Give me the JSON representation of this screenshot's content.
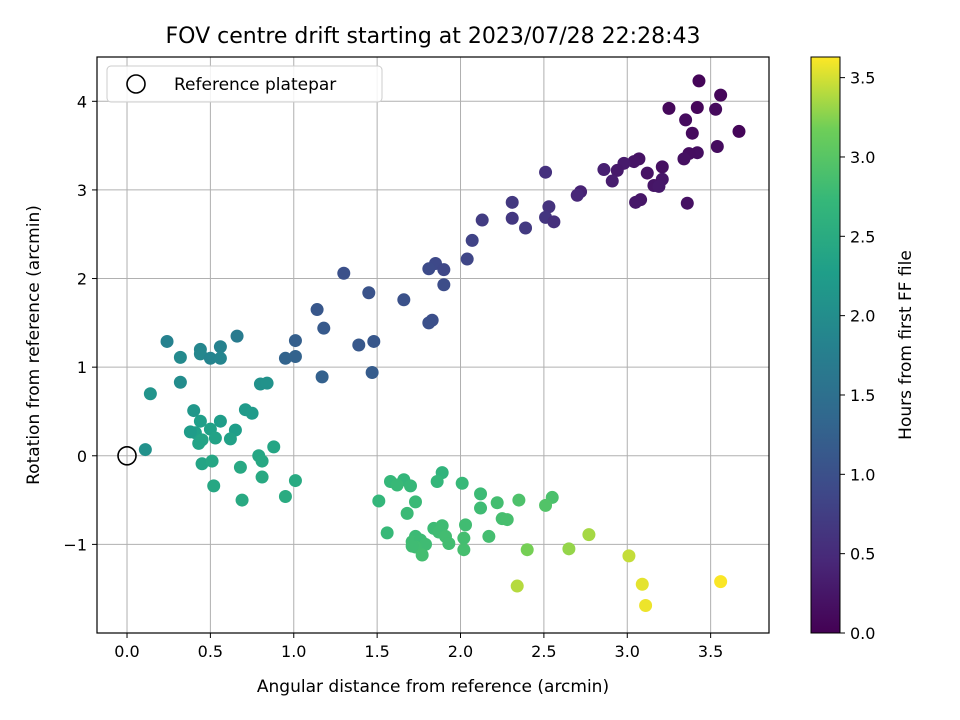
{
  "chart_data": {
    "type": "scatter",
    "title": "FOV centre drift starting at 2023/07/28 22:28:43",
    "xlabel": "Angular distance from reference (arcmin)",
    "ylabel": "Rotation from reference (arcmin)",
    "xlim": [
      -0.18,
      3.85
    ],
    "ylim": [
      -2.0,
      4.5
    ],
    "xticks": [
      0.0,
      0.5,
      1.0,
      1.5,
      2.0,
      2.5,
      3.0,
      3.5
    ],
    "xtick_labels": [
      "0.0",
      "0.5",
      "1.0",
      "1.5",
      "2.0",
      "2.5",
      "3.0",
      "3.5"
    ],
    "yticks": [
      -1,
      0,
      1,
      2,
      3,
      4
    ],
    "ytick_labels": [
      "−1",
      "0",
      "1",
      "2",
      "3",
      "4"
    ],
    "grid": true,
    "legend": {
      "position": "upper-left",
      "entries": [
        "Reference platepar"
      ]
    },
    "reference_point": {
      "x": 0.0,
      "y": 0.0,
      "marker": "open-circle"
    },
    "colorbar": {
      "label": "Hours from first FF file",
      "range": [
        0.0,
        3.63
      ],
      "ticks": [
        0.0,
        0.5,
        1.0,
        1.5,
        2.0,
        2.5,
        3.0,
        3.5
      ],
      "tick_labels": [
        "0.0",
        "0.5",
        "1.0",
        "1.5",
        "2.0",
        "2.5",
        "3.0",
        "3.5"
      ],
      "colormap": "viridis"
    },
    "points": [
      {
        "x": 3.43,
        "y": 4.23,
        "c": 0.05
      },
      {
        "x": 3.56,
        "y": 4.07,
        "c": 0.07
      },
      {
        "x": 3.25,
        "y": 3.92,
        "c": 0.08
      },
      {
        "x": 3.42,
        "y": 3.93,
        "c": 0.06
      },
      {
        "x": 3.53,
        "y": 3.91,
        "c": 0.1
      },
      {
        "x": 3.35,
        "y": 3.79,
        "c": 0.12
      },
      {
        "x": 3.67,
        "y": 3.66,
        "c": 0.05
      },
      {
        "x": 3.39,
        "y": 3.64,
        "c": 0.11
      },
      {
        "x": 3.54,
        "y": 3.49,
        "c": 0.13
      },
      {
        "x": 3.42,
        "y": 3.42,
        "c": 0.15
      },
      {
        "x": 3.37,
        "y": 3.41,
        "c": 0.14
      },
      {
        "x": 3.34,
        "y": 3.35,
        "c": 0.17
      },
      {
        "x": 3.07,
        "y": 3.35,
        "c": 0.2
      },
      {
        "x": 3.04,
        "y": 3.32,
        "c": 0.22
      },
      {
        "x": 2.98,
        "y": 3.3,
        "c": 0.3
      },
      {
        "x": 3.21,
        "y": 3.26,
        "c": 0.18
      },
      {
        "x": 2.86,
        "y": 3.23,
        "c": 0.36
      },
      {
        "x": 2.94,
        "y": 3.22,
        "c": 0.28
      },
      {
        "x": 3.12,
        "y": 3.19,
        "c": 0.21
      },
      {
        "x": 3.21,
        "y": 3.12,
        "c": 0.25
      },
      {
        "x": 2.91,
        "y": 3.1,
        "c": 0.33
      },
      {
        "x": 3.16,
        "y": 3.05,
        "c": 0.23
      },
      {
        "x": 3.19,
        "y": 3.04,
        "c": 0.27
      },
      {
        "x": 2.72,
        "y": 2.98,
        "c": 0.4
      },
      {
        "x": 2.7,
        "y": 2.94,
        "c": 0.45
      },
      {
        "x": 3.08,
        "y": 2.89,
        "c": 0.24
      },
      {
        "x": 3.05,
        "y": 2.86,
        "c": 0.26
      },
      {
        "x": 3.36,
        "y": 2.85,
        "c": 0.19
      },
      {
        "x": 2.51,
        "y": 3.2,
        "c": 0.58
      },
      {
        "x": 2.31,
        "y": 2.86,
        "c": 0.68
      },
      {
        "x": 2.53,
        "y": 2.81,
        "c": 0.6
      },
      {
        "x": 2.51,
        "y": 2.69,
        "c": 0.63
      },
      {
        "x": 2.31,
        "y": 2.68,
        "c": 0.66
      },
      {
        "x": 2.13,
        "y": 2.66,
        "c": 0.72
      },
      {
        "x": 2.56,
        "y": 2.64,
        "c": 0.56
      },
      {
        "x": 2.39,
        "y": 2.57,
        "c": 0.7
      },
      {
        "x": 2.07,
        "y": 2.43,
        "c": 0.82
      },
      {
        "x": 2.04,
        "y": 2.22,
        "c": 0.85
      },
      {
        "x": 1.85,
        "y": 2.17,
        "c": 0.9
      },
      {
        "x": 1.81,
        "y": 2.11,
        "c": 0.93
      },
      {
        "x": 1.9,
        "y": 2.1,
        "c": 0.88
      },
      {
        "x": 1.3,
        "y": 2.06,
        "c": 1.0
      },
      {
        "x": 1.9,
        "y": 1.93,
        "c": 0.95
      },
      {
        "x": 1.45,
        "y": 1.84,
        "c": 1.04
      },
      {
        "x": 1.66,
        "y": 1.76,
        "c": 1.02
      },
      {
        "x": 1.14,
        "y": 1.65,
        "c": 1.1
      },
      {
        "x": 1.83,
        "y": 1.53,
        "c": 0.98
      },
      {
        "x": 1.81,
        "y": 1.5,
        "c": 1.0
      },
      {
        "x": 1.18,
        "y": 1.44,
        "c": 1.15
      },
      {
        "x": 1.01,
        "y": 1.3,
        "c": 1.22
      },
      {
        "x": 1.48,
        "y": 1.29,
        "c": 1.1
      },
      {
        "x": 1.39,
        "y": 1.25,
        "c": 1.12
      },
      {
        "x": 1.01,
        "y": 1.12,
        "c": 1.28
      },
      {
        "x": 0.95,
        "y": 1.1,
        "c": 1.3
      },
      {
        "x": 1.47,
        "y": 0.94,
        "c": 1.18
      },
      {
        "x": 1.17,
        "y": 0.89,
        "c": 1.25
      },
      {
        "x": 0.24,
        "y": 1.29,
        "c": 1.8
      },
      {
        "x": 0.66,
        "y": 1.35,
        "c": 1.7
      },
      {
        "x": 0.44,
        "y": 1.2,
        "c": 1.88
      },
      {
        "x": 0.56,
        "y": 1.23,
        "c": 1.82
      },
      {
        "x": 0.44,
        "y": 1.15,
        "c": 1.9
      },
      {
        "x": 0.32,
        "y": 1.11,
        "c": 1.95
      },
      {
        "x": 0.5,
        "y": 1.1,
        "c": 1.85
      },
      {
        "x": 0.56,
        "y": 1.1,
        "c": 1.86
      },
      {
        "x": 0.32,
        "y": 0.83,
        "c": 1.98
      },
      {
        "x": 0.8,
        "y": 0.81,
        "c": 2.05
      },
      {
        "x": 0.84,
        "y": 0.82,
        "c": 2.07
      },
      {
        "x": 0.14,
        "y": 0.7,
        "c": 2.1
      },
      {
        "x": 0.4,
        "y": 0.51,
        "c": 2.15
      },
      {
        "x": 0.71,
        "y": 0.52,
        "c": 2.2
      },
      {
        "x": 0.75,
        "y": 0.48,
        "c": 2.22
      },
      {
        "x": 0.56,
        "y": 0.39,
        "c": 2.25
      },
      {
        "x": 0.44,
        "y": 0.39,
        "c": 2.28
      },
      {
        "x": 0.41,
        "y": 0.26,
        "c": 2.3
      },
      {
        "x": 0.65,
        "y": 0.29,
        "c": 2.27
      },
      {
        "x": 0.5,
        "y": 0.3,
        "c": 2.32
      },
      {
        "x": 0.38,
        "y": 0.27,
        "c": 2.24
      },
      {
        "x": 0.53,
        "y": 0.2,
        "c": 2.35
      },
      {
        "x": 0.62,
        "y": 0.19,
        "c": 2.33
      },
      {
        "x": 0.45,
        "y": 0.18,
        "c": 2.37
      },
      {
        "x": 0.43,
        "y": 0.14,
        "c": 2.36
      },
      {
        "x": 0.88,
        "y": 0.1,
        "c": 2.4
      },
      {
        "x": 0.11,
        "y": 0.07,
        "c": 2.05
      },
      {
        "x": 0.79,
        "y": 0.0,
        "c": 2.42
      },
      {
        "x": 0.81,
        "y": -0.06,
        "c": 2.44
      },
      {
        "x": 0.45,
        "y": -0.09,
        "c": 2.38
      },
      {
        "x": 0.51,
        "y": -0.06,
        "c": 2.41
      },
      {
        "x": 0.68,
        "y": -0.13,
        "c": 2.45
      },
      {
        "x": 0.81,
        "y": -0.24,
        "c": 2.46
      },
      {
        "x": 1.01,
        "y": -0.28,
        "c": 2.48
      },
      {
        "x": 0.52,
        "y": -0.34,
        "c": 2.43
      },
      {
        "x": 0.95,
        "y": -0.46,
        "c": 2.5
      },
      {
        "x": 0.69,
        "y": -0.5,
        "c": 2.47
      },
      {
        "x": 1.89,
        "y": -0.19,
        "c": 2.65
      },
      {
        "x": 1.86,
        "y": -0.29,
        "c": 2.7
      },
      {
        "x": 1.58,
        "y": -0.29,
        "c": 2.72
      },
      {
        "x": 1.66,
        "y": -0.27,
        "c": 2.68
      },
      {
        "x": 2.01,
        "y": -0.31,
        "c": 2.74
      },
      {
        "x": 1.62,
        "y": -0.33,
        "c": 2.75
      },
      {
        "x": 1.7,
        "y": -0.34,
        "c": 2.73
      },
      {
        "x": 2.12,
        "y": -0.43,
        "c": 2.78
      },
      {
        "x": 2.55,
        "y": -0.47,
        "c": 2.9
      },
      {
        "x": 1.51,
        "y": -0.51,
        "c": 2.7
      },
      {
        "x": 1.73,
        "y": -0.52,
        "c": 2.76
      },
      {
        "x": 2.22,
        "y": -0.53,
        "c": 2.84
      },
      {
        "x": 2.35,
        "y": -0.5,
        "c": 2.92
      },
      {
        "x": 2.51,
        "y": -0.56,
        "c": 2.95
      },
      {
        "x": 2.12,
        "y": -0.59,
        "c": 2.8
      },
      {
        "x": 1.68,
        "y": -0.65,
        "c": 2.77
      },
      {
        "x": 2.25,
        "y": -0.71,
        "c": 2.86
      },
      {
        "x": 2.28,
        "y": -0.72,
        "c": 2.87
      },
      {
        "x": 2.03,
        "y": -0.78,
        "c": 2.82
      },
      {
        "x": 1.84,
        "y": -0.82,
        "c": 2.79
      },
      {
        "x": 1.89,
        "y": -0.79,
        "c": 2.8
      },
      {
        "x": 1.56,
        "y": -0.87,
        "c": 2.74
      },
      {
        "x": 1.87,
        "y": -0.86,
        "c": 2.81
      },
      {
        "x": 1.91,
        "y": -0.91,
        "c": 2.83
      },
      {
        "x": 2.17,
        "y": -0.91,
        "c": 2.85
      },
      {
        "x": 2.02,
        "y": -0.93,
        "c": 2.84
      },
      {
        "x": 1.73,
        "y": -0.91,
        "c": 2.78
      },
      {
        "x": 1.71,
        "y": -0.97,
        "c": 2.8
      },
      {
        "x": 1.76,
        "y": -0.95,
        "c": 2.79
      },
      {
        "x": 1.79,
        "y": -1.0,
        "c": 2.81
      },
      {
        "x": 1.73,
        "y": -1.03,
        "c": 2.82
      },
      {
        "x": 1.93,
        "y": -0.99,
        "c": 2.83
      },
      {
        "x": 1.71,
        "y": -1.02,
        "c": 2.81
      },
      {
        "x": 2.02,
        "y": -1.06,
        "c": 2.86
      },
      {
        "x": 1.77,
        "y": -1.12,
        "c": 2.84
      },
      {
        "x": 2.77,
        "y": -0.89,
        "c": 3.35
      },
      {
        "x": 2.65,
        "y": -1.05,
        "c": 3.3
      },
      {
        "x": 2.4,
        "y": -1.06,
        "c": 3.2
      },
      {
        "x": 3.01,
        "y": -1.13,
        "c": 3.45
      },
      {
        "x": 2.34,
        "y": -1.47,
        "c": 3.4
      },
      {
        "x": 3.09,
        "y": -1.45,
        "c": 3.55
      },
      {
        "x": 3.56,
        "y": -1.42,
        "c": 3.62
      },
      {
        "x": 3.11,
        "y": -1.69,
        "c": 3.58
      }
    ]
  }
}
